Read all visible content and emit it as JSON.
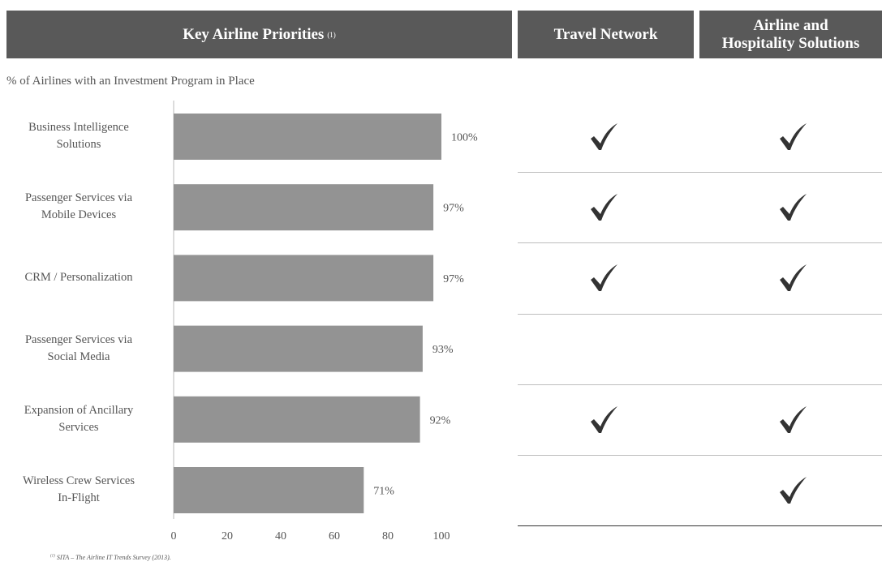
{
  "header": {
    "main_title": "Key Airline Priorities",
    "main_note": "(1)",
    "col1": "Travel Network",
    "col2_line1": "Airline and",
    "col2_line2": "Hospitality Solutions"
  },
  "subtitle": "% of Airlines with an Investment Program in Place",
  "rows": [
    {
      "label1": "Business Intelligence",
      "label2": "Solutions",
      "travel_network": true,
      "airline_hospitality": true
    },
    {
      "label1": "Passenger Services via",
      "label2": "Mobile Devices",
      "travel_network": true,
      "airline_hospitality": true
    },
    {
      "label1": "CRM / Personalization",
      "label2": "",
      "travel_network": true,
      "airline_hospitality": true
    },
    {
      "label1": "Passenger Services via",
      "label2": "Social Media",
      "travel_network": false,
      "airline_hospitality": false
    },
    {
      "label1": "Expansion of Ancillary",
      "label2": "Services",
      "travel_network": true,
      "airline_hospitality": true
    },
    {
      "label1": "Wireless Crew Services",
      "label2": "In-Flight",
      "travel_network": false,
      "airline_hospitality": true
    }
  ],
  "chart_data": {
    "type": "bar",
    "orientation": "horizontal",
    "categories": [
      "Business Intelligence Solutions",
      "Passenger Services via Mobile Devices",
      "CRM / Personalization",
      "Passenger Services via Social Media",
      "Expansion of Ancillary Services",
      "Wireless Crew Services In-Flight"
    ],
    "values": [
      100,
      97,
      97,
      93,
      92,
      71
    ],
    "value_labels": [
      "100%",
      "97%",
      "97%",
      "93%",
      "92%",
      "71%"
    ],
    "xlim": [
      0,
      100
    ],
    "xticks": [
      0,
      20,
      40,
      60,
      80,
      100
    ],
    "xtick_labels": [
      "0",
      "20",
      "40",
      "60",
      "80",
      "100"
    ],
    "title": "",
    "xlabel": "",
    "ylabel": "",
    "grid": false,
    "bar_color": "#939393"
  },
  "colors": {
    "header_bg": "#595959",
    "bar": "#939393",
    "check": "#333333"
  },
  "footnote": {
    "marker": "(1)",
    "text": "SITA – The Airline IT Trends Survey (2013)."
  }
}
